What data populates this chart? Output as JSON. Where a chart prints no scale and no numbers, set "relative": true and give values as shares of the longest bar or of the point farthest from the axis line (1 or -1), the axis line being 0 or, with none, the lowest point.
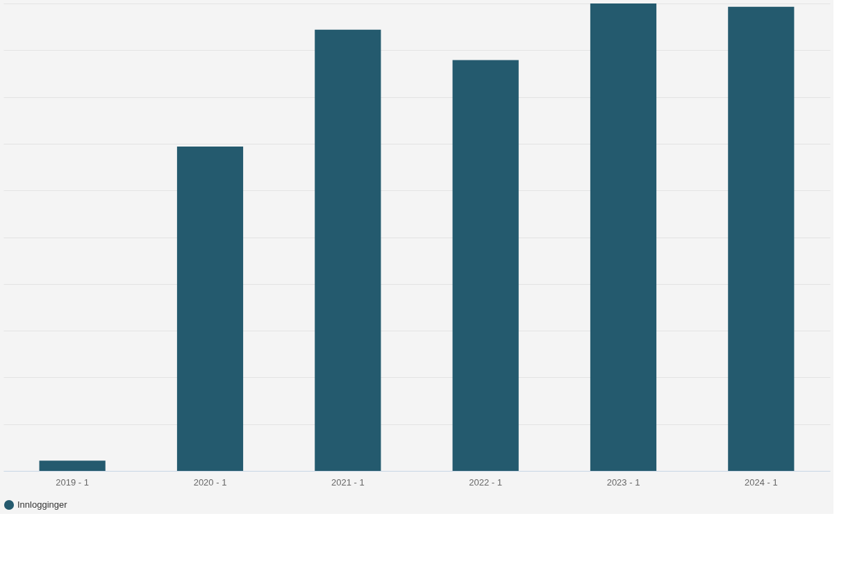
{
  "chart_data": {
    "type": "bar",
    "relative": true,
    "categories": [
      "2019 - 1",
      "2020 - 1",
      "2021 - 1",
      "2022 - 1",
      "2023 - 1",
      "2024 - 1"
    ],
    "series": [
      {
        "name": "Innlogginger",
        "color": "#245a6e",
        "values": [
          0.022,
          0.694,
          0.944,
          0.879,
          1,
          0.993
        ]
      }
    ],
    "grid": "y",
    "legend": "bottom"
  }
}
